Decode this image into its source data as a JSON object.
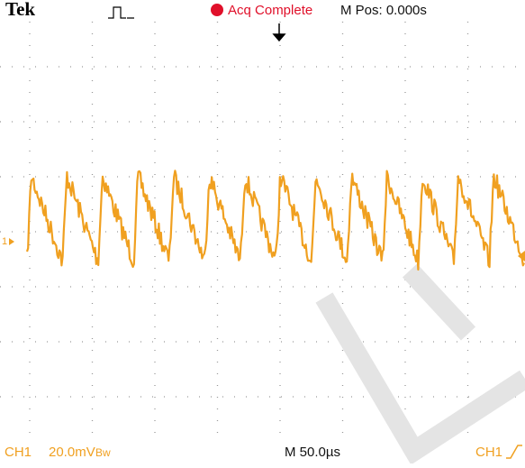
{
  "header": {
    "brand": "Tek",
    "status": "Acq Complete",
    "position": "M Pos: 0.000s"
  },
  "channel_marker": "1",
  "footer": {
    "channel": "CH1",
    "scale": "20.0mV",
    "bandwidth": "Bw",
    "timebase": "M 50.0µs",
    "trigger": "CH1"
  }
}
